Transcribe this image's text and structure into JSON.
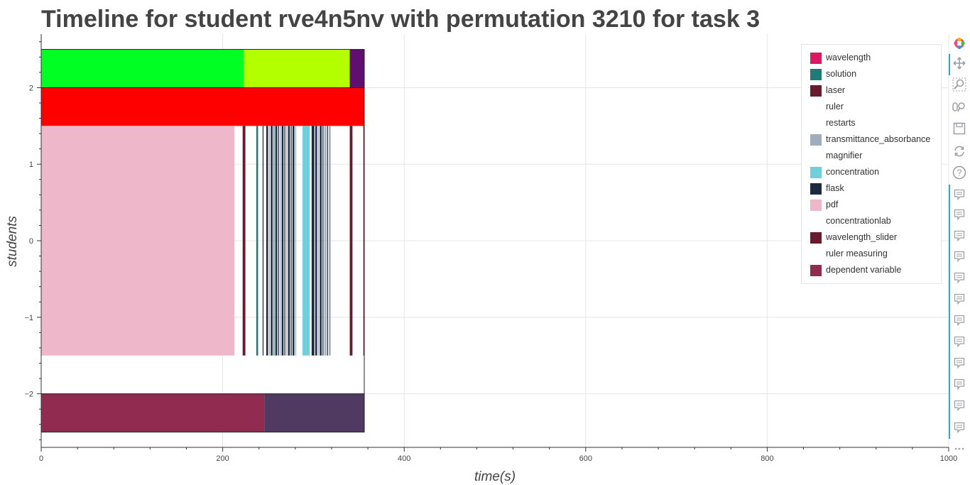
{
  "title": "Timeline for student rve4n5nv with permutation 3210 for task 3",
  "chart_data": {
    "type": "bar",
    "orientation": "horizontal-timeline",
    "title": "Timeline for student rve4n5nv with permutation 3210 for task 3",
    "xlabel": "time(s)",
    "ylabel": "students",
    "xlim": [
      0,
      1000
    ],
    "ylim": [
      -2.7,
      2.7
    ],
    "grid": true,
    "legend_position": "top-right",
    "x_ticks": [
      0,
      200,
      400,
      600,
      800,
      1000
    ],
    "y_ticks": [
      -2,
      -1,
      0,
      1,
      2
    ],
    "x_tick_labels": [
      "0",
      "200",
      "400",
      "600",
      "800",
      "1000"
    ],
    "y_tick_labels": [
      "−2",
      "−1",
      "0",
      "1",
      "2"
    ],
    "series": [
      {
        "name": "wavelength",
        "color": "#d81b60"
      },
      {
        "name": "solution",
        "color": "#1e7b78"
      },
      {
        "name": "laser",
        "color": "#6a1a2e"
      },
      {
        "name": "ruler",
        "color": "#ffffff"
      },
      {
        "name": "restarts",
        "color": "#ffffff"
      },
      {
        "name": "transmittance_absorbance",
        "color": "#9fadbd"
      },
      {
        "name": "magnifier",
        "color": "#ffffff"
      },
      {
        "name": "concentration",
        "color": "#6fd0dc"
      },
      {
        "name": "flask",
        "color": "#1b2a41"
      },
      {
        "name": "pdf",
        "color": "#efb8ca"
      },
      {
        "name": "concentrationlab",
        "color": "#ffffff"
      },
      {
        "name": "wavelength_slider",
        "color": "#6a1a2e"
      },
      {
        "name": "ruler measuring",
        "color": "#ffffff"
      },
      {
        "name": "dependent variable",
        "color": "#922b50"
      }
    ],
    "bars": [
      {
        "y0": 2.0,
        "y1": 2.5,
        "x0": 0,
        "x1": 223,
        "color": "#00ff22"
      },
      {
        "y0": 2.0,
        "y1": 2.5,
        "x0": 223,
        "x1": 340,
        "color": "#b3ff00"
      },
      {
        "y0": 2.0,
        "y1": 2.5,
        "x0": 340,
        "x1": 356,
        "color": "#5f0f6f"
      },
      {
        "y0": 1.5,
        "y1": 2.0,
        "x0": 0,
        "x1": 356,
        "color": "#ff0000"
      },
      {
        "y0": -1.5,
        "y1": 1.5,
        "x0": 0,
        "x1": 213,
        "color": "#efb8ca"
      },
      {
        "y0": -1.5,
        "y1": 1.5,
        "x0": 222,
        "x1": 225,
        "color": "#6a1a2e"
      },
      {
        "y0": -1.5,
        "y1": 1.5,
        "x0": 237,
        "x1": 239,
        "color": "#1e7b78"
      },
      {
        "y0": -1.5,
        "y1": 1.5,
        "x0": 244,
        "x1": 245,
        "color": "#1b2a41"
      },
      {
        "y0": -1.5,
        "y1": 1.5,
        "x0": 248,
        "x1": 250,
        "color": "#1b2a41"
      },
      {
        "y0": -1.5,
        "y1": 1.5,
        "x0": 251,
        "x1": 252,
        "color": "#9fadbd"
      },
      {
        "y0": -1.5,
        "y1": 1.5,
        "x0": 253,
        "x1": 255,
        "color": "#1b2a41"
      },
      {
        "y0": -1.5,
        "y1": 1.5,
        "x0": 256,
        "x1": 257,
        "color": "#1e7b78"
      },
      {
        "y0": -1.5,
        "y1": 1.5,
        "x0": 258,
        "x1": 260,
        "color": "#1b2a41"
      },
      {
        "y0": -1.5,
        "y1": 1.5,
        "x0": 261,
        "x1": 262,
        "color": "#1b2a41"
      },
      {
        "y0": -1.5,
        "y1": 1.5,
        "x0": 263,
        "x1": 264,
        "color": "#9fadbd"
      },
      {
        "y0": -1.5,
        "y1": 1.5,
        "x0": 265,
        "x1": 267,
        "color": "#1b2a41"
      },
      {
        "y0": -1.5,
        "y1": 1.5,
        "x0": 268,
        "x1": 269,
        "color": "#1b2a41"
      },
      {
        "y0": -1.5,
        "y1": 1.5,
        "x0": 270,
        "x1": 271,
        "color": "#9fadbd"
      },
      {
        "y0": -1.5,
        "y1": 1.5,
        "x0": 272,
        "x1": 274,
        "color": "#1b2a41"
      },
      {
        "y0": -1.5,
        "y1": 1.5,
        "x0": 275,
        "x1": 276,
        "color": "#1b2a41"
      },
      {
        "y0": -1.5,
        "y1": 1.5,
        "x0": 277,
        "x1": 279,
        "color": "#1b2a41"
      },
      {
        "y0": -1.5,
        "y1": 1.5,
        "x0": 280,
        "x1": 281,
        "color": "#9fadbd"
      },
      {
        "y0": -1.5,
        "y1": 1.5,
        "x0": 288,
        "x1": 296,
        "color": "#6fd0dc"
      },
      {
        "y0": -1.5,
        "y1": 1.5,
        "x0": 298,
        "x1": 301,
        "color": "#1b2a41"
      },
      {
        "y0": -1.5,
        "y1": 1.5,
        "x0": 302,
        "x1": 304,
        "color": "#1b2a41"
      },
      {
        "y0": -1.5,
        "y1": 1.5,
        "x0": 305,
        "x1": 306,
        "color": "#9fadbd"
      },
      {
        "y0": -1.5,
        "y1": 1.5,
        "x0": 307,
        "x1": 309,
        "color": "#1b2a41"
      },
      {
        "y0": -1.5,
        "y1": 1.5,
        "x0": 310,
        "x1": 311,
        "color": "#1b2a41"
      },
      {
        "y0": -1.5,
        "y1": 1.5,
        "x0": 312,
        "x1": 314,
        "color": "#9fadbd"
      },
      {
        "y0": -1.5,
        "y1": 1.5,
        "x0": 315,
        "x1": 316,
        "color": "#1b2a41"
      },
      {
        "y0": -1.5,
        "y1": 1.5,
        "x0": 317,
        "x1": 319,
        "color": "#9fadbd"
      },
      {
        "y0": -1.5,
        "y1": 1.5,
        "x0": 340,
        "x1": 343,
        "color": "#6a1a2e"
      },
      {
        "y0": -1.5,
        "y1": 1.5,
        "x0": 355,
        "x1": 356,
        "color": "#6a1a2e"
      },
      {
        "y0": -2.5,
        "y1": -2.0,
        "x0": 0,
        "x1": 246,
        "color": "#922b50"
      },
      {
        "y0": -2.5,
        "y1": -2.0,
        "x0": 246,
        "x1": 356,
        "color": "#513a62"
      }
    ],
    "outlines": [
      {
        "y0": 2.0,
        "y1": 2.5,
        "x0": 0,
        "x1": 356
      },
      {
        "y0": -2.5,
        "y1": -2.0,
        "x0": 0,
        "x1": 356
      }
    ]
  },
  "toolbar": {
    "items": [
      {
        "name": "bokeh-logo-icon"
      },
      {
        "name": "pan-icon"
      },
      {
        "name": "box-zoom-icon"
      },
      {
        "name": "wheel-zoom-icon"
      },
      {
        "name": "save-icon"
      },
      {
        "name": "reset-icon"
      },
      {
        "name": "help-icon"
      },
      {
        "name": "hover-icon"
      },
      {
        "name": "hover-icon"
      },
      {
        "name": "hover-icon"
      },
      {
        "name": "hover-icon"
      },
      {
        "name": "hover-icon"
      },
      {
        "name": "hover-icon"
      },
      {
        "name": "hover-icon"
      },
      {
        "name": "hover-icon"
      },
      {
        "name": "hover-icon"
      },
      {
        "name": "hover-icon"
      },
      {
        "name": "hover-icon"
      },
      {
        "name": "hover-icon"
      },
      {
        "name": "more-icon"
      }
    ]
  }
}
